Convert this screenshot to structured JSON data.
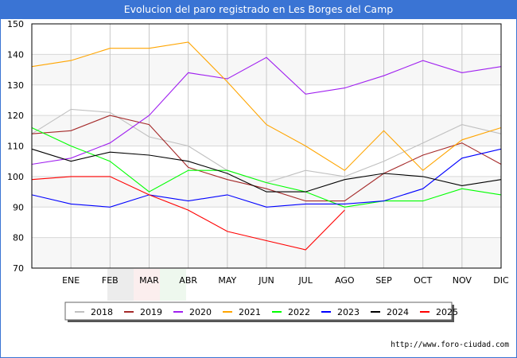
{
  "chart_data": {
    "type": "line",
    "title": "Evolucion del paro registrado en Les Borges del Camp",
    "xlabel": "",
    "ylabel": "",
    "categories": [
      "",
      "ENE",
      "FEB",
      "MAR",
      "ABR",
      "MAY",
      "JUN",
      "JUL",
      "AGO",
      "SEP",
      "OCT",
      "NOV",
      "DIC"
    ],
    "x_tick_labels": [
      "ENE",
      "FEB",
      "MAR",
      "ABR",
      "MAY",
      "JUN",
      "JUL",
      "AGO",
      "SEP",
      "OCT",
      "NOV",
      "DIC"
    ],
    "ylim": [
      70,
      150
    ],
    "y_ticks": [
      70,
      80,
      90,
      100,
      110,
      120,
      130,
      140,
      150
    ],
    "grid": true,
    "legend_position": "bottom-center",
    "series": [
      {
        "name": "2018",
        "color": "#c0c0c0",
        "values": [
          114,
          122,
          121,
          113,
          110,
          102,
          98,
          102,
          100,
          105,
          111,
          117,
          114
        ]
      },
      {
        "name": "2019",
        "color": "#a52a2a",
        "values": [
          114,
          115,
          120,
          117,
          103,
          99,
          96,
          92,
          92,
          101,
          107,
          111,
          104
        ]
      },
      {
        "name": "2020",
        "color": "#a020f0",
        "values": [
          104,
          106,
          111,
          120,
          134,
          132,
          139,
          127,
          129,
          133,
          138,
          134,
          136
        ]
      },
      {
        "name": "2021",
        "color": "#ffa500",
        "values": [
          136,
          138,
          142,
          142,
          144,
          131,
          117,
          110,
          102,
          115,
          102,
          112,
          116
        ]
      },
      {
        "name": "2022",
        "color": "#00ff00",
        "values": [
          116,
          110,
          105,
          95,
          102,
          102,
          98,
          95,
          90,
          92,
          92,
          96,
          94
        ]
      },
      {
        "name": "2023",
        "color": "#0000ff",
        "values": [
          94,
          91,
          90,
          94,
          92,
          94,
          90,
          91,
          91,
          92,
          96,
          106,
          109
        ]
      },
      {
        "name": "2024",
        "color": "#000000",
        "values": [
          109,
          105,
          108,
          107,
          105,
          101,
          95,
          95,
          99,
          101,
          100,
          97,
          99
        ]
      },
      {
        "name": "2025",
        "color": "#ff0000",
        "values": [
          99,
          100,
          100,
          94,
          89,
          82,
          79,
          76,
          89,
          null,
          null,
          null,
          null
        ]
      }
    ]
  },
  "source_text": "http://www.foro-ciudad.com"
}
